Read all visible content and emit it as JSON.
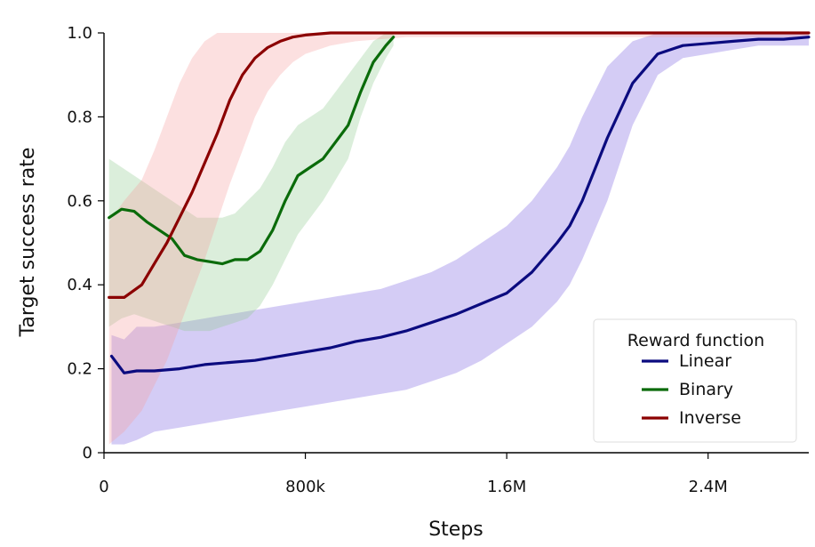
{
  "chart_data": {
    "type": "line",
    "title": "",
    "xlabel": "Steps",
    "ylabel": "Target success rate",
    "xlim": [
      0,
      2800000
    ],
    "ylim": [
      0,
      1.0
    ],
    "x_ticks": [
      {
        "value": 0,
        "label": "0"
      },
      {
        "value": 800000,
        "label": "800k"
      },
      {
        "value": 1600000,
        "label": "1.6M"
      },
      {
        "value": 2400000,
        "label": "2.4M"
      }
    ],
    "y_ticks": [
      {
        "value": 0,
        "label": "0"
      },
      {
        "value": 0.2,
        "label": "0.2"
      },
      {
        "value": 0.4,
        "label": "0.4"
      },
      {
        "value": 0.6,
        "label": "0.6"
      },
      {
        "value": 0.8,
        "label": "0.8"
      },
      {
        "value": 1.0,
        "label": "1.0"
      }
    ],
    "grid": false,
    "legend": {
      "title": "Reward function",
      "placement": "lower-right"
    },
    "series": [
      {
        "name": "Linear",
        "color": "#0b0b7f",
        "band_color": "#7a5fe0",
        "x": [
          30000,
          80000,
          130000,
          200000,
          300000,
          400000,
          500000,
          600000,
          700000,
          800000,
          900000,
          1000000,
          1100000,
          1200000,
          1300000,
          1400000,
          1500000,
          1600000,
          1700000,
          1800000,
          1850000,
          1900000,
          2000000,
          2100000,
          2200000,
          2300000,
          2400000,
          2500000,
          2600000,
          2700000,
          2800000
        ],
        "values": [
          0.23,
          0.19,
          0.195,
          0.195,
          0.2,
          0.21,
          0.215,
          0.22,
          0.23,
          0.24,
          0.25,
          0.265,
          0.275,
          0.29,
          0.31,
          0.33,
          0.355,
          0.38,
          0.43,
          0.5,
          0.54,
          0.6,
          0.75,
          0.88,
          0.95,
          0.97,
          0.975,
          0.98,
          0.985,
          0.985,
          0.99
        ],
        "band_lower": [
          0.02,
          0.02,
          0.03,
          0.05,
          0.06,
          0.07,
          0.08,
          0.09,
          0.1,
          0.11,
          0.12,
          0.13,
          0.14,
          0.15,
          0.17,
          0.19,
          0.22,
          0.26,
          0.3,
          0.36,
          0.4,
          0.46,
          0.6,
          0.78,
          0.9,
          0.94,
          0.95,
          0.96,
          0.97,
          0.97,
          0.97
        ],
        "band_upper": [
          0.28,
          0.27,
          0.3,
          0.3,
          0.31,
          0.32,
          0.33,
          0.34,
          0.35,
          0.36,
          0.37,
          0.38,
          0.39,
          0.41,
          0.43,
          0.46,
          0.5,
          0.54,
          0.6,
          0.68,
          0.73,
          0.8,
          0.92,
          0.98,
          1.0,
          1.0,
          1.0,
          1.0,
          1.0,
          1.0,
          1.0
        ]
      },
      {
        "name": "Binary",
        "color": "#0a6b0a",
        "band_color": "#8fca8f",
        "x": [
          20000,
          70000,
          120000,
          170000,
          220000,
          270000,
          320000,
          370000,
          420000,
          470000,
          520000,
          570000,
          620000,
          670000,
          720000,
          770000,
          820000,
          870000,
          920000,
          970000,
          1020000,
          1070000,
          1120000,
          1150000
        ],
        "values": [
          0.56,
          0.58,
          0.575,
          0.55,
          0.53,
          0.51,
          0.47,
          0.46,
          0.455,
          0.45,
          0.46,
          0.46,
          0.48,
          0.53,
          0.6,
          0.66,
          0.68,
          0.7,
          0.74,
          0.78,
          0.86,
          0.93,
          0.97,
          0.99
        ],
        "band_lower": [
          0.3,
          0.32,
          0.33,
          0.32,
          0.31,
          0.3,
          0.29,
          0.29,
          0.29,
          0.3,
          0.31,
          0.32,
          0.35,
          0.4,
          0.46,
          0.52,
          0.56,
          0.6,
          0.65,
          0.7,
          0.8,
          0.88,
          0.94,
          0.97
        ],
        "band_upper": [
          0.7,
          0.68,
          0.66,
          0.64,
          0.62,
          0.6,
          0.58,
          0.56,
          0.56,
          0.56,
          0.57,
          0.6,
          0.63,
          0.68,
          0.74,
          0.78,
          0.8,
          0.82,
          0.86,
          0.9,
          0.94,
          0.98,
          1.0,
          1.0
        ]
      },
      {
        "name": "Inverse",
        "color": "#8b0000",
        "band_color": "#f5a0a0",
        "x": [
          20000,
          80000,
          150000,
          200000,
          250000,
          300000,
          350000,
          400000,
          450000,
          500000,
          550000,
          600000,
          650000,
          700000,
          750000,
          800000,
          900000,
          1000000,
          1200000,
          1600000,
          2000000,
          2400000,
          2800000
        ],
        "values": [
          0.37,
          0.37,
          0.4,
          0.45,
          0.5,
          0.56,
          0.62,
          0.69,
          0.76,
          0.84,
          0.9,
          0.94,
          0.965,
          0.98,
          0.99,
          0.995,
          1.0,
          1.0,
          1.0,
          1.0,
          1.0,
          1.0,
          1.0
        ],
        "band_lower": [
          0.02,
          0.05,
          0.1,
          0.16,
          0.22,
          0.3,
          0.38,
          0.46,
          0.55,
          0.64,
          0.72,
          0.8,
          0.86,
          0.9,
          0.93,
          0.95,
          0.97,
          0.98,
          0.99,
          0.99,
          0.99,
          0.99,
          0.99
        ],
        "band_upper": [
          0.55,
          0.6,
          0.65,
          0.72,
          0.8,
          0.88,
          0.94,
          0.98,
          1.0,
          1.0,
          1.0,
          1.0,
          1.0,
          1.0,
          1.0,
          1.0,
          1.0,
          1.0,
          1.0,
          1.0,
          1.0,
          1.0,
          1.0
        ]
      }
    ]
  }
}
